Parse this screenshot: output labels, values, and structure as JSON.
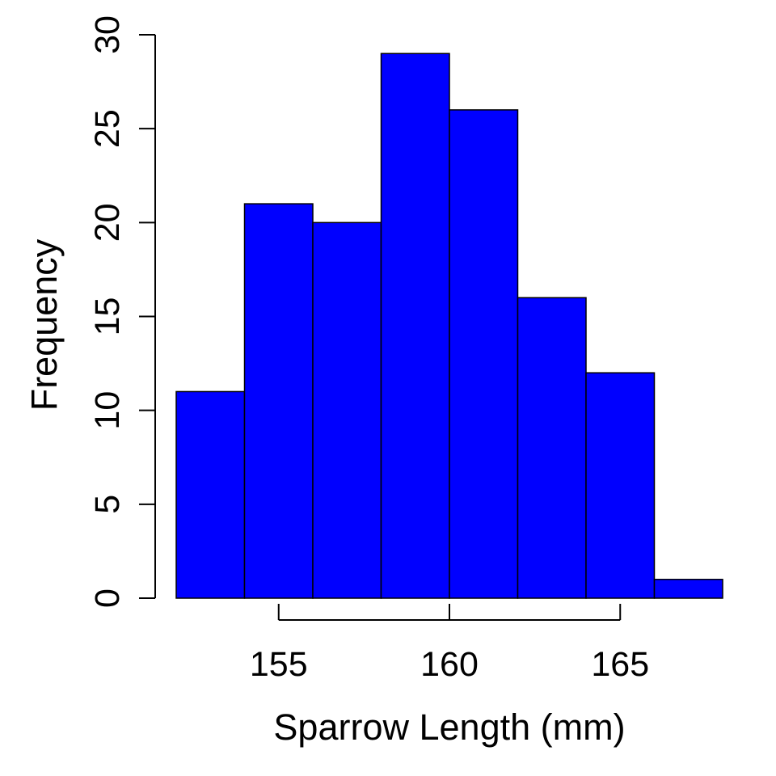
{
  "chart_data": {
    "type": "histogram",
    "title": "",
    "xlabel": "Sparrow Length (mm)",
    "ylabel": "Frequency",
    "bins": [
      {
        "start": 152,
        "end": 154,
        "count": 11
      },
      {
        "start": 154,
        "end": 156,
        "count": 21
      },
      {
        "start": 156,
        "end": 158,
        "count": 20
      },
      {
        "start": 158,
        "end": 160,
        "count": 29
      },
      {
        "start": 160,
        "end": 162,
        "count": 26
      },
      {
        "start": 162,
        "end": 164,
        "count": 16
      },
      {
        "start": 164,
        "end": 166,
        "count": 12
      },
      {
        "start": 166,
        "end": 168,
        "count": 1
      }
    ],
    "x_ticks": [
      155,
      160,
      165
    ],
    "y_ticks": [
      0,
      5,
      10,
      15,
      20,
      25,
      30
    ],
    "xlim": [
      152,
      168
    ],
    "ylim": [
      0,
      30
    ],
    "grid": false,
    "colors": {
      "bar_fill": "#0000ff",
      "bar_stroke": "#000000",
      "axis": "#000000"
    }
  }
}
